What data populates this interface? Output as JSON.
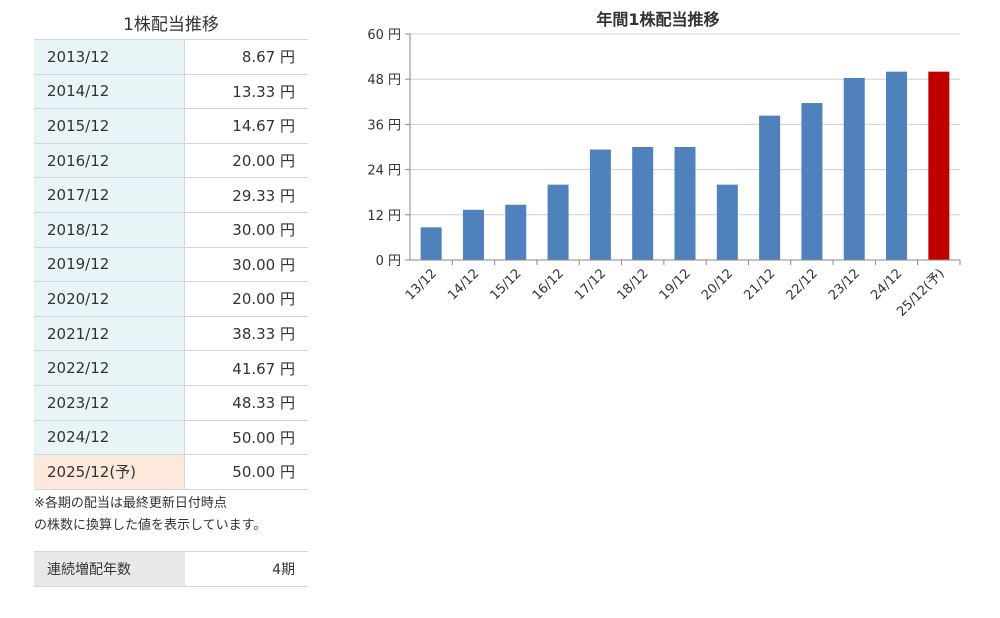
{
  "table": {
    "title": "1株配当推移",
    "rows": [
      {
        "period": "2013/12",
        "amount": "8.67 円"
      },
      {
        "period": "2014/12",
        "amount": "13.33 円"
      },
      {
        "period": "2015/12",
        "amount": "14.67 円"
      },
      {
        "period": "2016/12",
        "amount": "20.00 円"
      },
      {
        "period": "2017/12",
        "amount": "29.33 円"
      },
      {
        "period": "2018/12",
        "amount": "30.00 円"
      },
      {
        "period": "2019/12",
        "amount": "30.00 円"
      },
      {
        "period": "2020/12",
        "amount": "20.00 円"
      },
      {
        "period": "2021/12",
        "amount": "38.33 円"
      },
      {
        "period": "2022/12",
        "amount": "41.67 円"
      },
      {
        "period": "2023/12",
        "amount": "48.33 円"
      },
      {
        "period": "2024/12",
        "amount": "50.00 円"
      },
      {
        "period": "2025/12(予)",
        "amount": "50.00 円"
      }
    ],
    "note_line1": "※各期の配当は最終更新日付時点",
    "note_line2": "の株数に換算した値を表示しています。",
    "streak_label": "連続増配年数",
    "streak_value": "4期"
  },
  "chart_data": {
    "type": "bar",
    "title": "年間1株配当推移",
    "categories": [
      "13/12",
      "14/12",
      "15/12",
      "16/12",
      "17/12",
      "18/12",
      "19/12",
      "20/12",
      "21/12",
      "22/12",
      "23/12",
      "24/12",
      "25/12(予)"
    ],
    "values": [
      8.67,
      13.33,
      14.67,
      20.0,
      29.33,
      30.0,
      30.0,
      20.0,
      38.33,
      41.67,
      48.33,
      50.0,
      50.0
    ],
    "forecast_index": 12,
    "yticks": [
      "0 円",
      "12 円",
      "24 円",
      "36 円",
      "48 円",
      "60 円"
    ],
    "ytick_values": [
      0,
      12,
      24,
      36,
      48,
      60
    ],
    "ylim": [
      0,
      60
    ],
    "grid": true,
    "colors": {
      "actual": "#4f81bd",
      "forecast": "#c00000",
      "grid": "#d0d0d0"
    }
  }
}
